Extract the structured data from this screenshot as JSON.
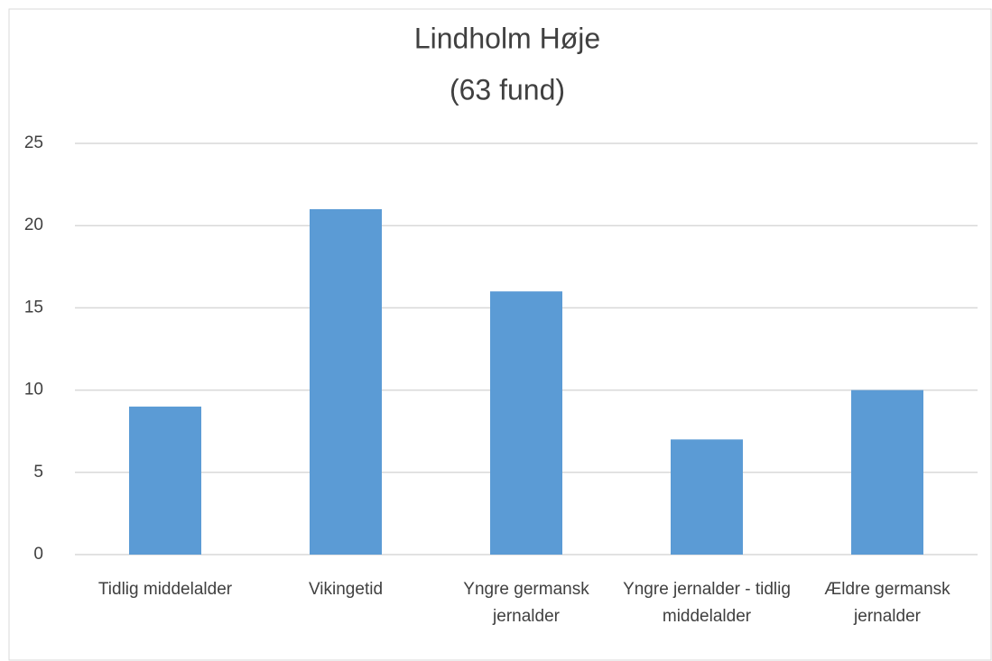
{
  "chart_data": {
    "type": "bar",
    "title": "Lindholm Høje",
    "subtitle": "(63 fund)",
    "categories": [
      "Tidlig middelalder",
      "Vikingetid",
      "Yngre germansk jernalder",
      "Yngre jernalder - tidlig middelalder",
      "Ældre germansk jernalder"
    ],
    "values": [
      9,
      21,
      16,
      7,
      10
    ],
    "color": "#5b9bd5",
    "ylim": [
      0,
      25
    ],
    "yticks": [
      0,
      5,
      10,
      15,
      20,
      25
    ],
    "grid": true
  }
}
